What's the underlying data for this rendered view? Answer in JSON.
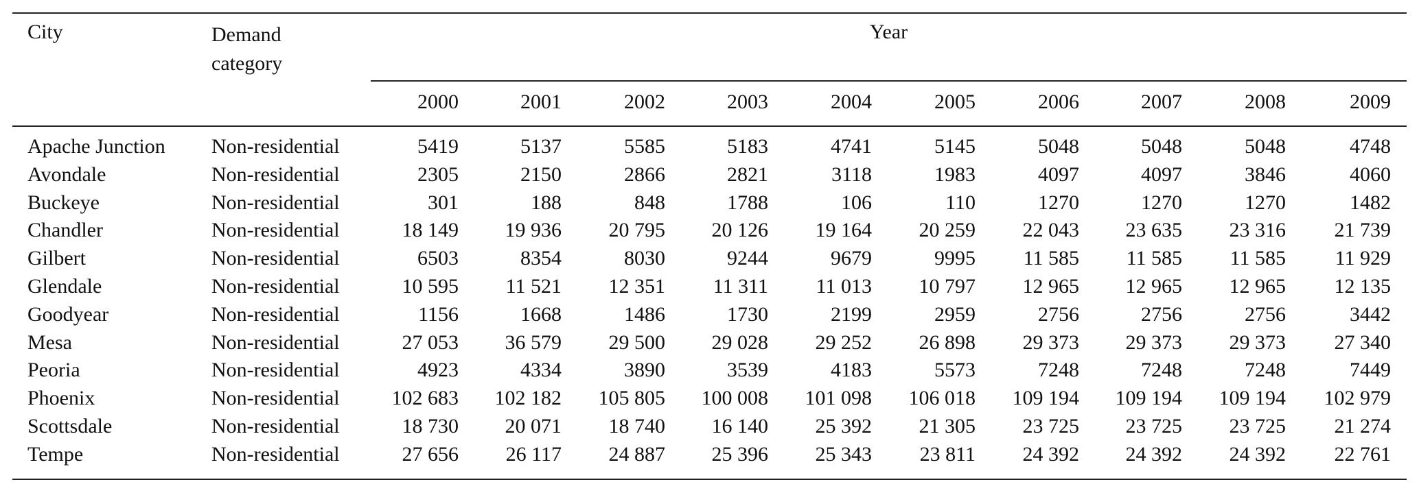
{
  "table": {
    "headers": {
      "city": "City",
      "demand_category": "Demand category",
      "year_group": "Year",
      "years": [
        "2000",
        "2001",
        "2002",
        "2003",
        "2004",
        "2005",
        "2006",
        "2007",
        "2008",
        "2009"
      ]
    },
    "rows": [
      {
        "city": "Apache Junction",
        "category": "Non-residential",
        "values": [
          "5419",
          "5137",
          "5585",
          "5183",
          "4741",
          "5145",
          "5048",
          "5048",
          "5048",
          "4748"
        ]
      },
      {
        "city": "Avondale",
        "category": "Non-residential",
        "values": [
          "2305",
          "2150",
          "2866",
          "2821",
          "3118",
          "1983",
          "4097",
          "4097",
          "3846",
          "4060"
        ]
      },
      {
        "city": "Buckeye",
        "category": "Non-residential",
        "values": [
          "301",
          "188",
          "848",
          "1788",
          "106",
          "110",
          "1270",
          "1270",
          "1270",
          "1482"
        ]
      },
      {
        "city": "Chandler",
        "category": "Non-residential",
        "values": [
          "18 149",
          "19 936",
          "20 795",
          "20 126",
          "19 164",
          "20 259",
          "22 043",
          "23 635",
          "23 316",
          "21 739"
        ]
      },
      {
        "city": "Gilbert",
        "category": "Non-residential",
        "values": [
          "6503",
          "8354",
          "8030",
          "9244",
          "9679",
          "9995",
          "11 585",
          "11 585",
          "11 585",
          "11 929"
        ]
      },
      {
        "city": "Glendale",
        "category": "Non-residential",
        "values": [
          "10 595",
          "11 521",
          "12 351",
          "11 311",
          "11 013",
          "10 797",
          "12 965",
          "12 965",
          "12 965",
          "12 135"
        ]
      },
      {
        "city": "Goodyear",
        "category": "Non-residential",
        "values": [
          "1156",
          "1668",
          "1486",
          "1730",
          "2199",
          "2959",
          "2756",
          "2756",
          "2756",
          "3442"
        ]
      },
      {
        "city": "Mesa",
        "category": "Non-residential",
        "values": [
          "27 053",
          "36 579",
          "29 500",
          "29 028",
          "29 252",
          "26 898",
          "29 373",
          "29 373",
          "29 373",
          "27 340"
        ]
      },
      {
        "city": "Peoria",
        "category": "Non-residential",
        "values": [
          "4923",
          "4334",
          "3890",
          "3539",
          "4183",
          "5573",
          "7248",
          "7248",
          "7248",
          "7449"
        ]
      },
      {
        "city": "Phoenix",
        "category": "Non-residential",
        "values": [
          "102 683",
          "102 182",
          "105 805",
          "100 008",
          "101 098",
          "106 018",
          "109 194",
          "109 194",
          "109 194",
          "102 979"
        ]
      },
      {
        "city": "Scottsdale",
        "category": "Non-residential",
        "values": [
          "18 730",
          "20 071",
          "18 740",
          "16 140",
          "25 392",
          "21 305",
          "23 725",
          "23 725",
          "23 725",
          "21 274"
        ]
      },
      {
        "city": "Tempe",
        "category": "Non-residential",
        "values": [
          "27 656",
          "26 117",
          "24 887",
          "25 396",
          "25 343",
          "23 811",
          "24 392",
          "24 392",
          "24 392",
          "22 761"
        ]
      }
    ]
  }
}
